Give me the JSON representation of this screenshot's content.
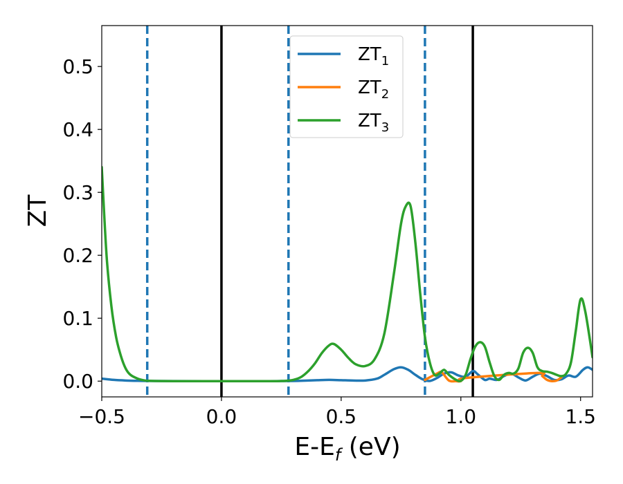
{
  "chart_data": {
    "type": "line",
    "xlabel_main": "E-E",
    "xlabel_sub": "f",
    "xlabel_unit": " (eV)",
    "ylabel": "ZT",
    "xlim": [
      -0.5,
      1.55
    ],
    "ylim": [
      -0.025,
      0.565
    ],
    "xticks": [
      {
        "value": -0.5,
        "label": "−0.5"
      },
      {
        "value": 0.0,
        "label": "0.0"
      },
      {
        "value": 0.5,
        "label": "0.5"
      },
      {
        "value": 1.0,
        "label": "1.0"
      },
      {
        "value": 1.5,
        "label": "1.5"
      }
    ],
    "yticks": [
      {
        "value": 0.0,
        "label": "0.0"
      },
      {
        "value": 0.1,
        "label": "0.1"
      },
      {
        "value": 0.2,
        "label": "0.2"
      },
      {
        "value": 0.3,
        "label": "0.3"
      },
      {
        "value": 0.4,
        "label": "0.4"
      },
      {
        "value": 0.5,
        "label": "0.5"
      }
    ],
    "grid": false,
    "legend_position": "top-center",
    "vlines_solid": {
      "color": "#000000",
      "x": [
        0.0,
        1.05
      ]
    },
    "vlines_dashed": {
      "color": "#1f77b4",
      "x": [
        -0.31,
        0.28,
        0.85
      ]
    },
    "series": [
      {
        "name_main": "ZT",
        "name_sub": "1",
        "color": "#1f77b4",
        "x": [
          -0.5,
          -0.45,
          -0.4,
          -0.35,
          -0.3,
          -0.2,
          0.0,
          0.2,
          0.3,
          0.35,
          0.4,
          0.45,
          0.5,
          0.55,
          0.6,
          0.65,
          0.68,
          0.72,
          0.75,
          0.78,
          0.81,
          0.84,
          0.87,
          0.9,
          0.93,
          0.96,
          0.99,
          1.02,
          1.05,
          1.07,
          1.1,
          1.12,
          1.15,
          1.18,
          1.21,
          1.24,
          1.27,
          1.3,
          1.33,
          1.36,
          1.39,
          1.42,
          1.45,
          1.48,
          1.51,
          1.53,
          1.55
        ],
        "y": [
          0.004,
          0.002,
          0.001,
          0.0005,
          0.0003,
          0.0001,
          0.0,
          0.0,
          0.0003,
          0.0008,
          0.0015,
          0.002,
          0.0015,
          0.001,
          0.001,
          0.004,
          0.01,
          0.019,
          0.022,
          0.018,
          0.01,
          0.003,
          0.0003,
          0.005,
          0.012,
          0.014,
          0.009,
          0.007,
          0.016,
          0.011,
          0.002,
          0.004,
          0.002,
          0.008,
          0.012,
          0.006,
          0.001,
          0.007,
          0.012,
          0.008,
          0.002,
          0.003,
          0.009,
          0.007,
          0.018,
          0.022,
          0.018
        ]
      },
      {
        "name_main": "ZT",
        "name_sub": "2",
        "color": "#ff7f0e",
        "x": [
          0.85,
          0.9,
          0.92,
          0.95,
          0.98,
          1.0,
          1.02,
          1.32,
          1.34,
          1.36,
          1.38,
          1.4,
          1.42
        ],
        "y": [
          0.002,
          0.012,
          0.014,
          0.001,
          0.0,
          0.0,
          0.005,
          0.013,
          0.008,
          0.002,
          0.0,
          0.001,
          0.006
        ]
      },
      {
        "name_main": "ZT",
        "name_sub": "3",
        "color": "#2ca02c",
        "x": [
          -0.5,
          -0.48,
          -0.46,
          -0.44,
          -0.42,
          -0.4,
          -0.38,
          -0.35,
          -0.32,
          -0.3,
          -0.25,
          -0.2,
          0.0,
          0.2,
          0.25,
          0.28,
          0.3,
          0.33,
          0.36,
          0.39,
          0.42,
          0.45,
          0.47,
          0.5,
          0.53,
          0.56,
          0.6,
          0.64,
          0.68,
          0.72,
          0.75,
          0.77,
          0.79,
          0.81,
          0.83,
          0.85,
          0.87,
          0.89,
          0.91,
          0.93,
          0.95,
          0.98,
          1.0,
          1.02,
          1.04,
          1.06,
          1.08,
          1.1,
          1.12,
          1.14,
          1.16,
          1.18,
          1.2,
          1.22,
          1.24,
          1.26,
          1.28,
          1.3,
          1.32,
          1.34,
          1.36,
          1.38,
          1.4,
          1.42,
          1.44,
          1.46,
          1.48,
          1.5,
          1.52,
          1.55
        ],
        "y": [
          0.34,
          0.2,
          0.12,
          0.07,
          0.04,
          0.02,
          0.01,
          0.004,
          0.001,
          0.0005,
          0.0001,
          0.0,
          0.0,
          0.0,
          0.0002,
          0.0008,
          0.002,
          0.006,
          0.015,
          0.028,
          0.045,
          0.057,
          0.059,
          0.05,
          0.037,
          0.027,
          0.024,
          0.035,
          0.075,
          0.17,
          0.25,
          0.278,
          0.278,
          0.22,
          0.14,
          0.07,
          0.03,
          0.01,
          0.012,
          0.018,
          0.01,
          0.002,
          0.0005,
          0.01,
          0.035,
          0.055,
          0.062,
          0.055,
          0.03,
          0.008,
          0.002,
          0.01,
          0.013,
          0.012,
          0.02,
          0.045,
          0.053,
          0.045,
          0.022,
          0.016,
          0.015,
          0.013,
          0.01,
          0.008,
          0.012,
          0.03,
          0.08,
          0.13,
          0.11,
          0.038
        ]
      }
    ]
  }
}
